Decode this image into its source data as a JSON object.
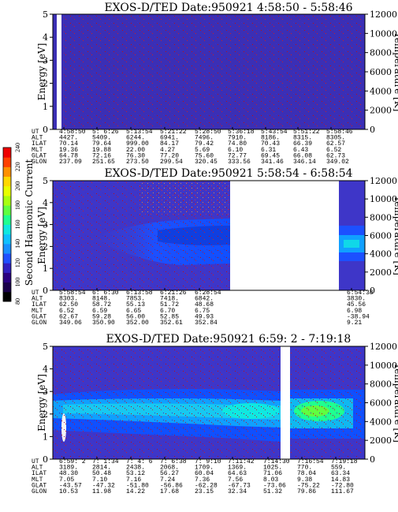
{
  "colorbar": {
    "label": "Second Harmonic Current",
    "ticks": [
      "80",
      "100",
      "120",
      "140",
      "160",
      "180",
      "200",
      "220",
      "240"
    ],
    "colors": [
      "#000000",
      "#1a004a",
      "#2a0080",
      "#3020c0",
      "#2050ff",
      "#1890ff",
      "#10c0ff",
      "#10e8e0",
      "#20ff90",
      "#60ff40",
      "#a8ff10",
      "#e8ff00",
      "#ffd800",
      "#ff9000",
      "#ff4000",
      "#ee0000"
    ]
  },
  "chart_data": [
    {
      "type": "heatmap",
      "title": "EXOS-D/TED   Date:950921  4:58:50 - 5:58:46",
      "ylabel": "Energy [eV]",
      "y2label": "Temperature [K]",
      "ylim": [
        0,
        5
      ],
      "y2lim": [
        0,
        12000
      ],
      "yticks": [
        "0",
        "1",
        "2",
        "3",
        "4",
        "5"
      ],
      "y2ticks": [
        "0",
        "2000",
        "4000",
        "6000",
        "8000",
        "10000",
        "12000"
      ],
      "row_labels": [
        "UT",
        "ALT",
        "ILAT",
        "MLT",
        "GLAT",
        "GLON"
      ],
      "columns": [
        [
          "4:58:50",
          "4427.",
          "70.14",
          "19.36",
          "64.78",
          "237.09"
        ],
        [
          "5: 6:26",
          "5409.",
          "79.64",
          "19.88",
          "72.16",
          "251.65"
        ],
        [
          "5:13:54",
          "6244.",
          "999.00",
          "22.00",
          "76.30",
          "273.50"
        ],
        [
          "5:21:22",
          "6941.",
          "84.17",
          "4.27",
          "77.20",
          "299.54"
        ],
        [
          "5:28:50",
          "7496.",
          "79.42",
          "5.69",
          "75.60",
          "320.45"
        ],
        [
          "5:36:18",
          "7910.",
          "74.80",
          "6.10",
          "72.77",
          "333.56"
        ],
        [
          "5:43:54",
          "8186.",
          "70.43",
          "6.31",
          "69.45",
          "341.46"
        ],
        [
          "5:51:22",
          "8315.",
          "66.39",
          "6.43",
          "66.08",
          "346.14"
        ],
        [
          "5:58:46",
          "8305.",
          "62.57",
          "6.52",
          "62.73",
          "349.02"
        ]
      ]
    },
    {
      "type": "heatmap",
      "title": "EXOS-D/TED   Date:950921   5:58:54 - 6:58:54",
      "ylabel": "Energy [eV]",
      "y2label": "Temperature [K]",
      "ylim": [
        0,
        5
      ],
      "y2lim": [
        0,
        12000
      ],
      "yticks": [
        "0",
        "1",
        "2",
        "3",
        "4",
        "5"
      ],
      "y2ticks": [
        "0",
        "2000",
        "4000",
        "6000",
        "8000",
        "10000",
        "12000"
      ],
      "row_labels": [
        "UT",
        "ALT",
        "ILAT",
        "MLT",
        "GLAT",
        "GLON"
      ],
      "columns": [
        [
          "5:58:54",
          "8303.",
          "62.50",
          "6.52",
          "62.67",
          "349.06"
        ],
        [
          "6: 6:30",
          "8148.",
          "58.72",
          "6.59",
          "59.28",
          "350.90"
        ],
        [
          "6:13:58",
          "7853.",
          "55.13",
          "6.65",
          "56.00",
          "352.00"
        ],
        [
          "6:21:26",
          "7418.",
          "51.72",
          "6.70",
          "52.85",
          "352.61"
        ],
        [
          "6:28:54",
          "6842.",
          "48.68",
          "6.75",
          "49.93",
          "352.84"
        ],
        [
          "6:54:38",
          "3830.",
          "45.56",
          "6.98",
          "-38.94",
          "9.21"
        ]
      ]
    },
    {
      "type": "heatmap",
      "title": "EXOS-D/TED   Date:950921   6:59: 2 - 7:19:18",
      "ylabel": "Energy [eV]",
      "y2label": "Temperature [K]",
      "ylim": [
        0,
        5
      ],
      "y2lim": [
        0,
        12000
      ],
      "yticks": [
        "0",
        "1",
        "2",
        "3",
        "4",
        "5"
      ],
      "y2ticks": [
        "0",
        "2000",
        "4000",
        "6000",
        "8000",
        "10000",
        "12000"
      ],
      "row_labels": [
        "UT",
        "ALT",
        "ILAT",
        "MLT",
        "GLAT",
        "GLON"
      ],
      "columns": [
        [
          "6:59: 2",
          "3189.",
          "48.30",
          "7.05",
          "-43.57",
          "10.53"
        ],
        [
          "7: 1:34",
          "2814.",
          "50.48",
          "7.10",
          "-47.32",
          "11.98"
        ],
        [
          "7: 4: 6",
          "2438.",
          "53.12",
          "7.16",
          "-51.80",
          "14.22"
        ],
        [
          "7: 6:38",
          "2068.",
          "56.27",
          "7.24",
          "-56.86",
          "17.68"
        ],
        [
          "7: 9:10",
          "1709.",
          "60.04",
          "7.36",
          "-62.28",
          "23.15"
        ],
        [
          "7:11:42",
          "1369.",
          "64.63",
          "7.56",
          "-67.73",
          "32.34"
        ],
        [
          "7:14:30",
          "1025.",
          "71.06",
          "8.03",
          "-73.06",
          "51.32"
        ],
        [
          "7:16:54",
          "770.",
          "78.04",
          "9.38",
          "-75.22",
          "79.86"
        ],
        [
          "7:19:18",
          "559.",
          "63.34",
          "14.83",
          "-72.80",
          "111.67"
        ]
      ]
    }
  ]
}
